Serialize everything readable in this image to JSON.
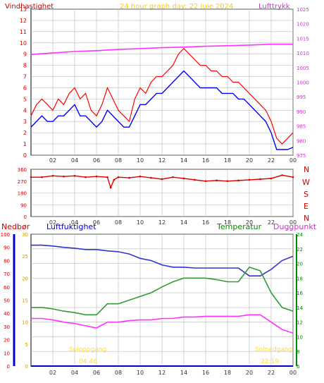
{
  "header": {
    "left": "Vindhastighet",
    "center": "24 hour graph day:  22 Juie 2024",
    "right": "Lufttrykk"
  },
  "x_ticks": [
    "02",
    "04",
    "06",
    "08",
    "10",
    "12",
    "14",
    "16",
    "18",
    "20",
    "22",
    "00"
  ],
  "compass": [
    "N",
    "W",
    "S",
    "E",
    "N"
  ],
  "bottom_header": {
    "c1": "Nedbør",
    "c2": "Luftfuktighet",
    "c3": "Temperatur",
    "c4": "Duggpunkt"
  },
  "sun_labels": {
    "rise_top": "Soloppgang",
    "rise_time": "04:46",
    "set_top": "Solnedgang",
    "set_time": "22:19"
  },
  "colors": {
    "wind_gust": "#ff0000",
    "wind_avg": "#0000ff",
    "pressure": "#ff33ff",
    "direction": "#dd0000",
    "humidity": "#3333cc",
    "temperature": "#339933",
    "dewpoint": "#ff33ff",
    "rain": "#0000cc",
    "sun": "#ffdd33",
    "grid": "#bbbbbb"
  },
  "chart_data": [
    {
      "type": "line",
      "x_unit": "hour of day",
      "y_left_label": "Vindhastighet",
      "y_left_ticks": [
        0,
        1,
        2,
        3,
        4,
        5,
        6,
        7,
        8,
        9,
        10,
        11,
        12,
        13
      ],
      "ylim_left": [
        0,
        13
      ],
      "y_right_label": "Lufttrykk",
      "y_right_ticks": [
        975,
        980,
        985,
        990,
        995,
        1000,
        1005,
        1010,
        1015,
        1020,
        1025
      ],
      "ylim_right": [
        975,
        1025
      ],
      "series": [
        {
          "key": "gust",
          "axis": "left",
          "x": [
            0,
            0.5,
            1,
            1.5,
            2,
            2.5,
            3,
            3.5,
            4,
            4.5,
            5,
            5.5,
            6,
            6.5,
            7,
            7.5,
            8,
            8.5,
            9,
            9.5,
            10,
            10.5,
            11,
            11.5,
            12,
            12.5,
            13,
            13.5,
            14,
            14.5,
            15,
            15.5,
            16,
            16.5,
            17,
            17.5,
            18,
            18.5,
            19,
            19.5,
            20,
            20.5,
            21,
            21.5,
            22,
            22.5,
            23,
            23.5,
            24
          ],
          "y": [
            3.5,
            4.5,
            5.0,
            4.5,
            4.0,
            5.0,
            4.5,
            5.5,
            6.0,
            5.0,
            5.5,
            4.0,
            3.5,
            4.5,
            6.0,
            5.0,
            4.0,
            3.5,
            3.0,
            5.0,
            6.0,
            5.5,
            6.5,
            7.0,
            7.0,
            7.5,
            8.0,
            9.0,
            9.5,
            9.0,
            8.5,
            8.0,
            8.0,
            7.5,
            7.5,
            7.0,
            7.0,
            6.5,
            6.5,
            6.0,
            5.5,
            5.0,
            4.5,
            4.0,
            3.0,
            1.5,
            1.0,
            1.5,
            2.0
          ]
        },
        {
          "key": "avg",
          "axis": "left",
          "x": [
            0,
            0.5,
            1,
            1.5,
            2,
            2.5,
            3,
            3.5,
            4,
            4.5,
            5,
            5.5,
            6,
            6.5,
            7,
            7.5,
            8,
            8.5,
            9,
            9.5,
            10,
            10.5,
            11,
            11.5,
            12,
            12.5,
            13,
            13.5,
            14,
            14.5,
            15,
            15.5,
            16,
            16.5,
            17,
            17.5,
            18,
            18.5,
            19,
            19.5,
            20,
            20.5,
            21,
            21.5,
            22,
            22.5,
            23,
            23.5,
            24
          ],
          "y": [
            2.5,
            3.0,
            3.5,
            3.0,
            3.0,
            3.5,
            3.5,
            4.0,
            4.5,
            3.5,
            3.5,
            3.0,
            2.5,
            3.0,
            4.0,
            3.5,
            3.0,
            2.5,
            2.5,
            3.5,
            4.5,
            4.5,
            5.0,
            5.5,
            5.5,
            6.0,
            6.5,
            7.0,
            7.5,
            7.0,
            6.5,
            6.0,
            6.0,
            6.0,
            6.0,
            5.5,
            5.5,
            5.5,
            5.0,
            5.0,
            4.5,
            4.0,
            3.5,
            3.0,
            2.0,
            0.5,
            0.5,
            0.5,
            0.7
          ]
        },
        {
          "key": "pressure",
          "axis": "right",
          "x": [
            0,
            2,
            4,
            6,
            8,
            10,
            12,
            14,
            16,
            18,
            20,
            22,
            24
          ],
          "y": [
            1009.5,
            1010.0,
            1010.5,
            1010.8,
            1011.2,
            1011.5,
            1011.8,
            1012.0,
            1012.3,
            1012.5,
            1012.7,
            1013.0,
            1013.0
          ]
        }
      ]
    },
    {
      "type": "scatter",
      "x_unit": "hour of day",
      "y_label": "wind direction",
      "y_ticks": [
        0,
        45,
        90,
        135,
        180,
        225,
        270,
        315,
        360
      ],
      "ylim": [
        0,
        360
      ],
      "series": [
        {
          "key": "direction",
          "x": [
            0,
            1,
            2,
            3,
            4,
            5,
            6,
            7,
            7.3,
            7.6,
            8,
            9,
            10,
            11,
            12,
            13,
            14,
            15,
            16,
            17,
            18,
            19,
            20,
            21,
            22,
            23,
            24
          ],
          "y": [
            300,
            300,
            310,
            305,
            310,
            300,
            305,
            300,
            220,
            280,
            300,
            295,
            305,
            295,
            285,
            300,
            290,
            280,
            270,
            275,
            270,
            275,
            280,
            285,
            290,
            315,
            300
          ]
        }
      ]
    },
    {
      "type": "line",
      "x_unit": "hour of day",
      "axes": {
        "rain": {
          "ticks": [
            0,
            10,
            20,
            30,
            40,
            50,
            60,
            70,
            80,
            90,
            100
          ],
          "ylim": [
            0,
            100
          ]
        },
        "humidity": {
          "ticks": [
            0,
            5,
            10,
            15,
            20,
            25,
            30
          ],
          "ylim": [
            0,
            30
          ]
        },
        "temperature": {
          "ticks": [
            6,
            8,
            10,
            12,
            14,
            16,
            18,
            20,
            22,
            24
          ],
          "ylim": [
            6,
            24
          ]
        }
      },
      "series": [
        {
          "key": "humidity",
          "axis": "humidity",
          "x": [
            0,
            1,
            2,
            3,
            4,
            5,
            6,
            7,
            8,
            9,
            10,
            11,
            12,
            13,
            14,
            15,
            16,
            17,
            18,
            19,
            20,
            21,
            22,
            23,
            24
          ],
          "y": [
            27.5,
            27.5,
            27.3,
            27.0,
            26.8,
            26.5,
            26.5,
            26.2,
            26.0,
            25.5,
            24.5,
            24.0,
            23.0,
            22.5,
            22.5,
            22.3,
            22.3,
            22.3,
            22.3,
            22.3,
            20.5,
            20.5,
            22.0,
            24.0,
            25.0
          ]
        },
        {
          "key": "temperature",
          "axis": "temperature",
          "x": [
            0,
            1,
            2,
            3,
            4,
            5,
            6,
            7,
            8,
            9,
            10,
            11,
            12,
            13,
            14,
            15,
            16,
            17,
            18,
            19,
            20,
            21,
            22,
            23,
            24
          ],
          "y": [
            14.0,
            14.0,
            13.8,
            13.5,
            13.3,
            13.0,
            13.0,
            14.5,
            14.5,
            15.0,
            15.5,
            16.0,
            16.8,
            17.5,
            18.0,
            18.0,
            18.0,
            17.8,
            17.5,
            17.5,
            19.5,
            19.0,
            16.0,
            14.0,
            13.5
          ]
        },
        {
          "key": "dewpoint",
          "axis": "temperature",
          "x": [
            0,
            1,
            2,
            3,
            4,
            5,
            6,
            7,
            8,
            9,
            10,
            11,
            12,
            13,
            14,
            15,
            16,
            17,
            18,
            19,
            20,
            21,
            22,
            23,
            24
          ],
          "y": [
            12.5,
            12.5,
            12.3,
            12.0,
            11.8,
            11.5,
            11.2,
            12.0,
            12.0,
            12.2,
            12.3,
            12.3,
            12.5,
            12.5,
            12.7,
            12.7,
            12.8,
            12.8,
            12.8,
            12.8,
            13.0,
            13.0,
            12.0,
            11.0,
            10.5
          ]
        },
        {
          "key": "rain",
          "axis": "rain",
          "x": [
            0,
            24
          ],
          "y": [
            0,
            0
          ]
        }
      ]
    }
  ]
}
